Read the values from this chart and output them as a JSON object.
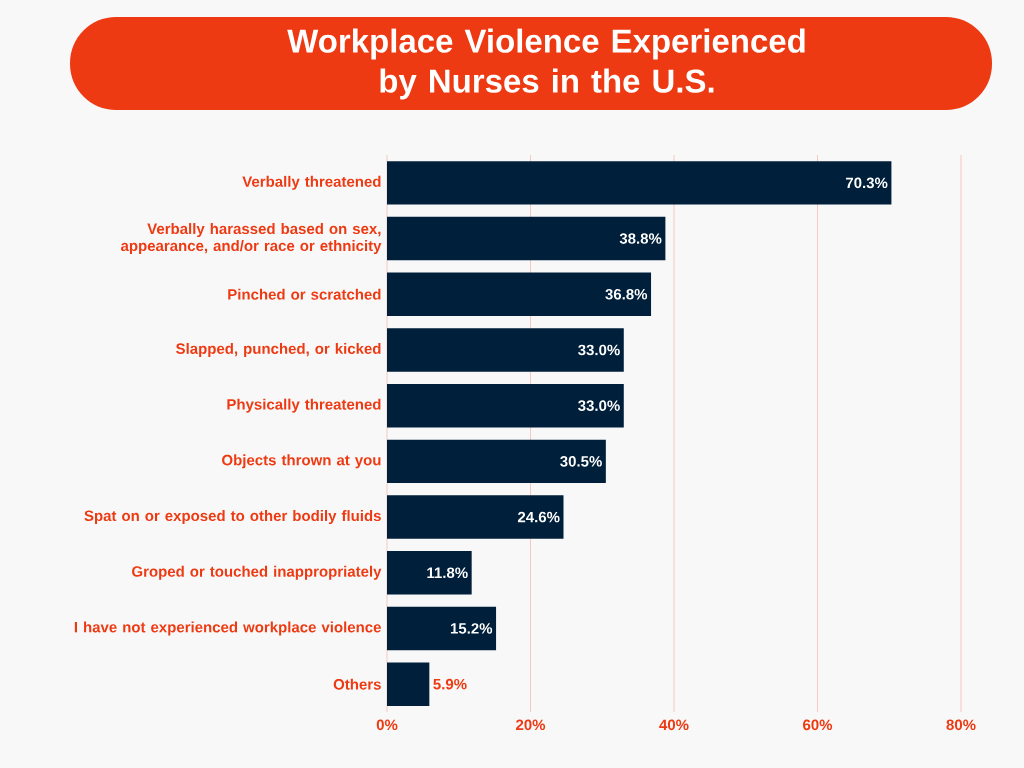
{
  "chart_data": {
    "type": "bar",
    "orientation": "horizontal",
    "title": "Workplace Violence Experienced by Nurses in the U.S.",
    "categories": [
      "Verbally threatened",
      "Verbally harassed based on sex, appearance, and/or race or ethnicity",
      "Pinched or scratched",
      "Slapped, punched, or kicked",
      "Physically threatened",
      "Objects thrown at you",
      "Spat on or exposed to other bodily fluids",
      "Groped or touched inappropriately",
      "I have not experienced workplace violence",
      "Others"
    ],
    "values": [
      70.3,
      38.8,
      36.8,
      33.0,
      33.0,
      30.5,
      24.6,
      11.8,
      15.2,
      5.9
    ],
    "value_labels": [
      "70.3%",
      "38.8%",
      "36.8%",
      "33.0%",
      "33.0%",
      "30.5%",
      "24.6%",
      "11.8%",
      "15.2%",
      "5.9%"
    ],
    "color": "#001f3a",
    "xlim": [
      0,
      80
    ],
    "xticks": [
      {
        "value": 0,
        "label": "0%"
      },
      {
        "value": 20,
        "label": "20%"
      },
      {
        "value": 40,
        "label": "40%"
      },
      {
        "value": 60,
        "label": "60%"
      },
      {
        "value": 80,
        "label": "80%"
      }
    ],
    "grid": "x"
  }
}
